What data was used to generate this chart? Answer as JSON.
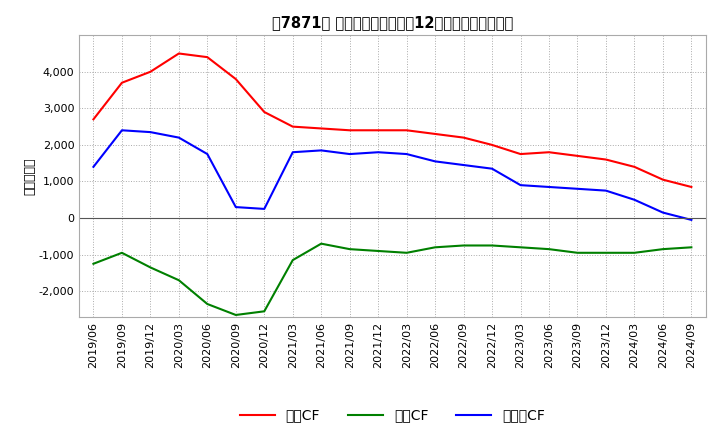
{
  "title": "　7871、 キャッシュフローの12か月移動合計の推移",
  "ylabel": "（百万円）",
  "ylim": [
    -2700,
    5000
  ],
  "yticks": [
    -2000,
    -1000,
    0,
    1000,
    2000,
    3000,
    4000
  ],
  "dates": [
    "2019/06",
    "2019/09",
    "2019/12",
    "2020/03",
    "2020/06",
    "2020/09",
    "2020/12",
    "2021/03",
    "2021/06",
    "2021/09",
    "2021/12",
    "2022/03",
    "2022/06",
    "2022/09",
    "2022/12",
    "2023/03",
    "2023/06",
    "2023/09",
    "2023/12",
    "2024/03",
    "2024/06",
    "2024/09"
  ],
  "operating_cf": [
    2700,
    3700,
    4000,
    4500,
    4400,
    3800,
    2900,
    2500,
    2450,
    2400,
    2400,
    2400,
    2300,
    2200,
    2000,
    1750,
    1800,
    1700,
    1600,
    1400,
    1050,
    850
  ],
  "investing_cf": [
    -1250,
    -950,
    -1350,
    -1700,
    -2350,
    -2650,
    -2550,
    -1150,
    -700,
    -850,
    -900,
    -950,
    -800,
    -750,
    -750,
    -800,
    -850,
    -950,
    -950,
    -950,
    -850,
    -800
  ],
  "free_cf": [
    1400,
    2400,
    2350,
    2200,
    1750,
    300,
    250,
    1800,
    1850,
    1750,
    1800,
    1750,
    1550,
    1450,
    1350,
    900,
    850,
    800,
    750,
    500,
    150,
    -50
  ],
  "operating_color": "#FF0000",
  "investing_color": "#008000",
  "free_color": "#0000FF",
  "background_color": "#FFFFFF",
  "grid_color": "#AAAAAA",
  "legend_labels": [
    "営業CF",
    "投資CF",
    "フリーCF"
  ]
}
